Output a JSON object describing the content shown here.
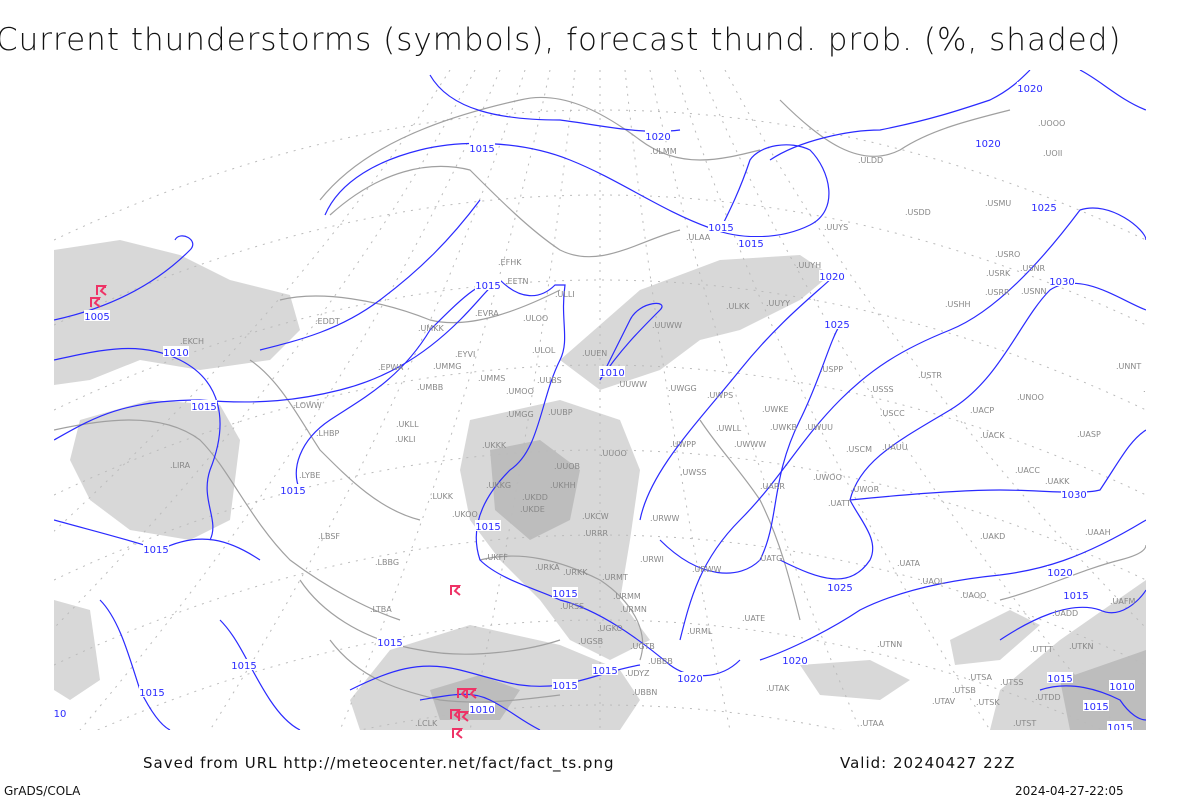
{
  "title": "Current thunderstorms (symbols), forecast thund. prob. (%, shaded)",
  "footer": {
    "saved_from": "Saved from URL http://meteocenter.net/fact/fact_ts.png",
    "valid": "Valid: 20240427 22Z",
    "software": "GrADS/COLA",
    "generated": "2024-04-27-22:05"
  },
  "colors": {
    "isobar": "#2a2aff",
    "coastline": "#a0a0a0",
    "station_label": "#888888",
    "thunderstorm_symbol": "#ee3366",
    "probability_shade": "#d8d8d8",
    "probability_shade_dark": "#bdbdbd"
  },
  "legend_symbol": "thunderstorm-icon",
  "stations": [
    "EFHK",
    "EETN",
    "ULLI",
    "EVRA",
    "ULOO",
    "ULOL",
    "EYVI",
    "UMKK",
    "EDDT",
    "EKCH",
    "EPWA",
    "UMMG",
    "UMBB",
    "UMMS",
    "UMOO",
    "UUBS",
    "UMGG",
    "UUBP",
    "UKLL",
    "UKLI",
    "UKKK",
    "LOWW",
    "LHBP",
    "LYBE",
    "LUKK",
    "UKOO",
    "UKHH",
    "UUOB",
    "UKKG",
    "UKDD",
    "UKDE",
    "UKCW",
    "URRR",
    "UUOO",
    "LBSF",
    "LBBG",
    "UKFF",
    "URKA",
    "URKK",
    "URMT",
    "URMM",
    "URSS",
    "URMN",
    "UGSB",
    "UGKO",
    "UGTB",
    "UBBB",
    "UDYZ",
    "UBBN",
    "URWI",
    "URWW",
    "LTBA",
    "LCLK",
    "UUWW",
    "UUEN",
    "UUWW",
    "UWGG",
    "UWPS",
    "UWKE",
    "UWLL",
    "UWKB",
    "UWUU",
    "UWPP",
    "UWWW",
    "UWSS",
    "URWW",
    "UARR",
    "UWOO",
    "UATT",
    "UWOR",
    "USCM",
    "UAUU",
    "USCC",
    "USSS",
    "USTR",
    "USPP",
    "UUYH",
    "UUYY",
    "ULKK",
    "UUYS",
    "ULAA",
    "ULMM",
    "ULDD",
    "USDD",
    "USMU",
    "USRO",
    "USRK",
    "USNR",
    "USRR",
    "USNN",
    "USHH",
    "UNOO",
    "UACP",
    "UACK",
    "UASP",
    "UACC",
    "UAKK",
    "UNNT",
    "UNBB",
    "UAKD",
    "UAAH",
    "UATG",
    "UATA",
    "UAOL",
    "UAOO",
    "UATE",
    "UTNN",
    "UTAK",
    "UTAA",
    "UTSA",
    "UTSB",
    "UTAV",
    "UTSK",
    "UTSS",
    "UTDD",
    "UTST",
    "UTTT",
    "UTKN",
    "UAFM",
    "UADD",
    "UOOO",
    "UOII",
    "URML",
    "LIRA"
  ],
  "isobar_labels": [
    "1005",
    "1010",
    "1015",
    "1015",
    "1015",
    "1015",
    "1015",
    "10",
    "1015",
    "1020",
    "1015",
    "1015",
    "1015",
    "1020",
    "1025",
    "1010",
    "1015",
    "1020",
    "1025",
    "1020",
    "1020",
    "1015",
    "1015",
    "1015",
    "1015",
    "1010",
    "1020",
    "1025",
    "1030",
    "1030",
    "1015",
    "1015",
    "1010",
    "1015",
    "1015",
    "1020"
  ],
  "thunderstorm_count_shown": 8
}
